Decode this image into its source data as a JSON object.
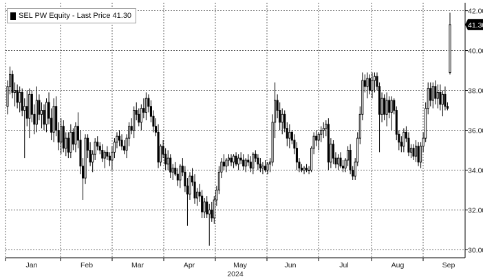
{
  "legend": {
    "label": "SEL PW Equity - Last Price 41.30"
  },
  "last_price_tag": "41.30",
  "colors": {
    "candle": "#000000",
    "grid": "#404040",
    "tag_bg": "#000000",
    "tag_text": "#ffffff"
  },
  "chart_data": {
    "type": "candlestick",
    "title": "",
    "xlabel": "2024",
    "ylabel": "",
    "ylim": [
      29.6,
      42.4
    ],
    "y_ticks": [
      30.0,
      32.0,
      34.0,
      36.0,
      38.0,
      40.0,
      42.0
    ],
    "y_tick_labels": [
      "30.00",
      "32.00",
      "34.00",
      "36.00",
      "38.00",
      "40.00",
      "42.00"
    ],
    "x_ticks": [
      "Jan",
      "Feb",
      "Mar",
      "Apr",
      "May",
      "Jun",
      "Jul",
      "Aug",
      "Sep"
    ],
    "year_label": "2024",
    "grid": true,
    "legend_position": "top-left",
    "last_price": 41.3,
    "series": [
      {
        "name": "SEL PW Equity - Last Price",
        "ohlc": [
          [
            37.2,
            38.5,
            36.8,
            38.2
          ],
          [
            38.2,
            39.2,
            37.8,
            38.8
          ],
          [
            38.8,
            39.0,
            37.6,
            37.9
          ],
          [
            37.9,
            38.4,
            37.2,
            38.0
          ],
          [
            38.0,
            38.3,
            37.1,
            37.4
          ],
          [
            37.4,
            38.2,
            36.9,
            37.9
          ],
          [
            37.9,
            38.1,
            36.7,
            37.0
          ],
          [
            37.0,
            37.6,
            34.6,
            37.2
          ],
          [
            37.2,
            38.0,
            36.2,
            36.6
          ],
          [
            36.6,
            38.1,
            35.6,
            37.8
          ],
          [
            37.8,
            38.0,
            36.4,
            36.8
          ],
          [
            36.8,
            37.3,
            35.8,
            36.3
          ],
          [
            36.3,
            38.2,
            35.9,
            37.5
          ],
          [
            37.5,
            37.8,
            36.5,
            36.8
          ],
          [
            36.8,
            37.4,
            36.1,
            37.0
          ],
          [
            37.0,
            37.3,
            36.0,
            36.3
          ],
          [
            36.3,
            37.6,
            35.9,
            37.4
          ],
          [
            37.4,
            37.9,
            36.3,
            36.6
          ],
          [
            36.6,
            37.1,
            35.5,
            35.9
          ],
          [
            35.9,
            37.6,
            35.4,
            37.2
          ],
          [
            37.2,
            37.7,
            35.7,
            36.0
          ],
          [
            36.0,
            36.4,
            35.0,
            35.4
          ],
          [
            35.4,
            36.6,
            34.8,
            36.2
          ],
          [
            36.2,
            36.5,
            34.9,
            35.1
          ],
          [
            35.1,
            35.9,
            34.7,
            35.6
          ],
          [
            35.6,
            35.9,
            34.6,
            34.9
          ],
          [
            34.9,
            36.3,
            34.6,
            35.9
          ],
          [
            35.9,
            36.1,
            35.0,
            35.3
          ],
          [
            35.3,
            36.4,
            34.9,
            36.2
          ],
          [
            36.2,
            36.9,
            35.1,
            35.5
          ],
          [
            35.5,
            36.0,
            33.8,
            34.2
          ],
          [
            34.2,
            34.6,
            32.5,
            33.6
          ],
          [
            33.6,
            35.8,
            33.3,
            35.6
          ],
          [
            35.6,
            35.8,
            34.6,
            35.0
          ],
          [
            35.0,
            35.4,
            34.2,
            34.4
          ],
          [
            34.4,
            35.0,
            33.9,
            34.8
          ],
          [
            34.8,
            35.6,
            34.5,
            35.4
          ],
          [
            35.4,
            35.7,
            35.0,
            35.2
          ],
          [
            35.2,
            35.4,
            34.8,
            35.0
          ],
          [
            35.0,
            35.3,
            34.4,
            34.6
          ],
          [
            34.6,
            35.0,
            34.1,
            34.9
          ],
          [
            34.9,
            35.2,
            34.5,
            34.7
          ],
          [
            34.7,
            34.9,
            34.2,
            34.5
          ],
          [
            34.5,
            35.2,
            34.0,
            34.9
          ],
          [
            34.9,
            35.6,
            34.6,
            35.4
          ],
          [
            35.4,
            35.9,
            35.1,
            35.7
          ],
          [
            35.7,
            36.0,
            35.2,
            35.5
          ],
          [
            35.5,
            35.8,
            35.0,
            35.2
          ],
          [
            35.2,
            35.5,
            34.8,
            35.0
          ],
          [
            35.0,
            35.8,
            34.6,
            35.6
          ],
          [
            35.6,
            36.4,
            35.2,
            36.2
          ],
          [
            36.2,
            36.6,
            35.8,
            36.0
          ],
          [
            36.0,
            37.2,
            35.6,
            37.0
          ],
          [
            37.0,
            37.4,
            36.5,
            36.8
          ],
          [
            36.8,
            37.1,
            36.2,
            36.4
          ],
          [
            36.4,
            37.3,
            36.0,
            37.1
          ],
          [
            37.1,
            37.6,
            36.6,
            36.9
          ],
          [
            36.9,
            37.9,
            36.5,
            37.6
          ],
          [
            37.6,
            37.8,
            36.9,
            37.2
          ],
          [
            37.2,
            37.5,
            36.4,
            36.7
          ],
          [
            36.7,
            37.0,
            35.9,
            36.2
          ],
          [
            36.2,
            36.6,
            35.7,
            35.9
          ],
          [
            35.9,
            36.3,
            34.1,
            34.4
          ],
          [
            34.4,
            35.3,
            34.2,
            35.2
          ],
          [
            35.2,
            35.5,
            34.6,
            34.8
          ],
          [
            34.8,
            35.1,
            34.0,
            34.3
          ],
          [
            34.3,
            35.0,
            34.0,
            34.6
          ],
          [
            34.6,
            34.8,
            33.6,
            33.9
          ],
          [
            33.9,
            34.3,
            33.5,
            34.1
          ],
          [
            34.1,
            34.4,
            33.7,
            33.8
          ],
          [
            33.8,
            34.1,
            33.2,
            33.5
          ],
          [
            33.5,
            34.3,
            33.1,
            34.2
          ],
          [
            34.2,
            34.6,
            33.7,
            33.9
          ],
          [
            33.9,
            34.2,
            32.9,
            33.2
          ],
          [
            33.2,
            33.6,
            31.2,
            32.8
          ],
          [
            32.8,
            33.9,
            32.5,
            33.7
          ],
          [
            33.7,
            34.1,
            33.2,
            33.4
          ],
          [
            33.4,
            33.8,
            32.3,
            32.6
          ],
          [
            32.6,
            33.1,
            32.2,
            32.9
          ],
          [
            32.9,
            33.3,
            32.4,
            32.7
          ],
          [
            32.7,
            33.0,
            31.6,
            31.9
          ],
          [
            31.9,
            32.6,
            31.6,
            32.4
          ],
          [
            32.4,
            32.7,
            31.6,
            31.8
          ],
          [
            31.8,
            32.3,
            30.2,
            32.0
          ],
          [
            32.0,
            32.4,
            31.4,
            31.6
          ],
          [
            31.6,
            32.7,
            31.3,
            32.5
          ],
          [
            32.5,
            33.2,
            32.2,
            33.0
          ],
          [
            33.0,
            34.2,
            32.8,
            33.9
          ],
          [
            33.9,
            34.6,
            33.6,
            34.4
          ],
          [
            34.4,
            34.8,
            34.0,
            34.2
          ],
          [
            34.2,
            34.6,
            33.9,
            34.5
          ],
          [
            34.5,
            34.8,
            34.2,
            34.6
          ],
          [
            34.6,
            34.8,
            34.2,
            34.4
          ],
          [
            34.4,
            34.8,
            34.1,
            34.7
          ],
          [
            34.7,
            34.9,
            34.2,
            34.3
          ],
          [
            34.3,
            34.8,
            34.0,
            34.6
          ],
          [
            34.6,
            34.9,
            34.3,
            34.5
          ],
          [
            34.5,
            34.8,
            34.0,
            34.2
          ],
          [
            34.2,
            34.6,
            33.9,
            34.5
          ],
          [
            34.5,
            34.8,
            34.2,
            34.4
          ],
          [
            34.4,
            34.7,
            33.9,
            34.1
          ],
          [
            34.1,
            34.9,
            33.8,
            34.8
          ],
          [
            34.8,
            35.0,
            34.4,
            34.6
          ],
          [
            34.6,
            34.8,
            34.0,
            34.3
          ],
          [
            34.3,
            34.6,
            33.9,
            34.1
          ],
          [
            34.1,
            34.4,
            33.8,
            34.2
          ],
          [
            34.2,
            34.5,
            33.9,
            34.0
          ],
          [
            34.0,
            34.4,
            33.8,
            34.3
          ],
          [
            34.3,
            34.6,
            33.9,
            34.4
          ],
          [
            34.4,
            36.8,
            34.2,
            36.4
          ],
          [
            36.4,
            38.4,
            35.6,
            37.5
          ],
          [
            37.5,
            37.8,
            36.6,
            37.0
          ],
          [
            37.0,
            37.4,
            36.0,
            36.4
          ],
          [
            36.4,
            37.1,
            35.8,
            36.8
          ],
          [
            36.8,
            37.0,
            35.9,
            36.1
          ],
          [
            36.1,
            36.4,
            35.2,
            35.6
          ],
          [
            35.6,
            36.3,
            35.1,
            35.9
          ],
          [
            35.9,
            36.0,
            35.3,
            35.5
          ],
          [
            35.5,
            35.8,
            34.8,
            35.1
          ],
          [
            35.1,
            35.4,
            34.0,
            34.4
          ],
          [
            34.4,
            34.6,
            33.9,
            34.1
          ],
          [
            34.1,
            34.3,
            33.9,
            34.0
          ],
          [
            34.0,
            34.2,
            33.8,
            34.1
          ],
          [
            34.1,
            34.3,
            33.9,
            34.0
          ],
          [
            34.0,
            34.2,
            33.8,
            34.0
          ],
          [
            34.0,
            35.2,
            33.9,
            35.1
          ],
          [
            35.1,
            35.9,
            34.8,
            35.7
          ],
          [
            35.7,
            36.0,
            35.2,
            35.5
          ],
          [
            35.5,
            35.9,
            35.0,
            35.8
          ],
          [
            35.8,
            36.2,
            35.4,
            36.0
          ],
          [
            36.0,
            36.4,
            35.6,
            36.1
          ],
          [
            36.1,
            36.5,
            35.7,
            36.3
          ],
          [
            36.3,
            36.6,
            34.0,
            34.4
          ],
          [
            34.4,
            35.6,
            34.1,
            35.3
          ],
          [
            35.3,
            35.5,
            34.3,
            34.6
          ],
          [
            34.6,
            34.9,
            34.1,
            34.3
          ],
          [
            34.3,
            34.8,
            34.0,
            34.6
          ],
          [
            34.6,
            34.9,
            34.1,
            34.2
          ],
          [
            34.2,
            34.5,
            33.9,
            34.1
          ],
          [
            34.1,
            34.6,
            33.9,
            34.5
          ],
          [
            34.5,
            35.2,
            34.2,
            35.0
          ],
          [
            35.0,
            35.3,
            33.8,
            34.0
          ],
          [
            34.0,
            34.2,
            33.5,
            33.7
          ],
          [
            33.7,
            34.6,
            33.5,
            34.4
          ],
          [
            34.4,
            35.9,
            34.2,
            35.6
          ],
          [
            35.6,
            37.2,
            35.3,
            36.8
          ],
          [
            36.8,
            38.9,
            36.5,
            38.5
          ],
          [
            38.5,
            38.8,
            37.9,
            38.2
          ],
          [
            38.2,
            38.9,
            37.6,
            38.6
          ],
          [
            38.6,
            38.8,
            37.8,
            38.0
          ],
          [
            38.0,
            38.9,
            37.6,
            38.5
          ],
          [
            38.5,
            38.9,
            37.9,
            38.7
          ],
          [
            38.7,
            38.9,
            38.0,
            38.2
          ],
          [
            38.2,
            38.4,
            34.9,
            36.8
          ],
          [
            36.8,
            37.9,
            36.4,
            37.6
          ],
          [
            37.6,
            37.8,
            36.5,
            36.8
          ],
          [
            36.8,
            37.9,
            36.2,
            37.5
          ],
          [
            37.5,
            37.7,
            36.6,
            36.9
          ],
          [
            36.9,
            37.7,
            36.0,
            37.5
          ],
          [
            37.5,
            37.6,
            36.8,
            37.0
          ],
          [
            37.0,
            37.2,
            35.5,
            35.8
          ],
          [
            35.8,
            36.0,
            35.0,
            35.4
          ],
          [
            35.4,
            35.7,
            34.9,
            35.2
          ],
          [
            35.2,
            36.1,
            34.9,
            35.9
          ],
          [
            35.9,
            36.2,
            35.4,
            35.6
          ],
          [
            35.6,
            35.9,
            34.7,
            34.9
          ],
          [
            34.9,
            35.3,
            34.6,
            35.1
          ],
          [
            35.1,
            35.3,
            34.5,
            34.7
          ],
          [
            34.7,
            35.5,
            34.4,
            35.2
          ],
          [
            35.2,
            35.4,
            34.2,
            34.4
          ],
          [
            34.4,
            35.4,
            34.1,
            35.2
          ],
          [
            35.2,
            35.9,
            34.9,
            35.6
          ],
          [
            35.6,
            37.4,
            35.4,
            37.1
          ],
          [
            37.1,
            38.4,
            36.8,
            38.1
          ],
          [
            38.1,
            38.4,
            37.2,
            37.5
          ],
          [
            37.5,
            38.4,
            37.1,
            38.2
          ],
          [
            38.2,
            38.5,
            37.3,
            37.6
          ],
          [
            37.6,
            38.3,
            37.1,
            37.9
          ],
          [
            37.9,
            38.3,
            37.0,
            37.3
          ],
          [
            37.3,
            38.0,
            36.7,
            37.8
          ],
          [
            37.8,
            38.2,
            37.0,
            37.2
          ],
          [
            37.2,
            37.4,
            37.0,
            37.1
          ],
          [
            38.9,
            41.9,
            38.8,
            41.3
          ]
        ]
      }
    ]
  }
}
